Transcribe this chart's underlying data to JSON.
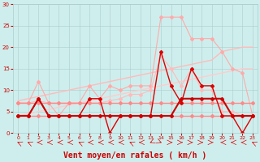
{
  "x": [
    0,
    1,
    2,
    3,
    4,
    5,
    6,
    7,
    8,
    9,
    10,
    11,
    12,
    13,
    14,
    15,
    16,
    17,
    18,
    19,
    20,
    21,
    22,
    23
  ],
  "series": [
    {
      "name": "slope_upper_light",
      "color": "#ffbbbb",
      "linewidth": 1.0,
      "marker": null,
      "y": [
        7.5,
        8.0,
        8.5,
        9.0,
        9.5,
        10.0,
        10.5,
        11.0,
        11.5,
        12.0,
        12.5,
        13.0,
        13.5,
        14.0,
        14.5,
        15.0,
        15.5,
        16.0,
        16.5,
        17.0,
        19.0,
        19.5,
        20.0,
        20.0
      ]
    },
    {
      "name": "slope_lower_light",
      "color": "#ffcccc",
      "linewidth": 1.0,
      "marker": null,
      "y": [
        4.0,
        4.5,
        5.0,
        5.5,
        6.0,
        6.5,
        7.0,
        7.5,
        8.0,
        8.5,
        9.0,
        9.5,
        10.0,
        10.5,
        11.0,
        11.5,
        12.0,
        12.5,
        13.0,
        13.5,
        14.0,
        14.5,
        15.0,
        15.0
      ]
    },
    {
      "name": "rafales_light",
      "color": "#ffaaaa",
      "linewidth": 0.8,
      "marker": "D",
      "markersize": 2.0,
      "y": [
        7,
        7,
        12,
        7,
        4,
        7,
        7,
        11,
        8,
        11,
        10,
        11,
        11,
        11,
        27,
        27,
        27,
        22,
        22,
        22,
        19,
        15,
        14,
        4
      ]
    },
    {
      "name": "moyen_light",
      "color": "#ffbbbb",
      "linewidth": 0.8,
      "marker": "D",
      "markersize": 2.0,
      "y": [
        7,
        7,
        7.5,
        7,
        7,
        7,
        7,
        7,
        7,
        7.5,
        8,
        9,
        9,
        10,
        18,
        15,
        11,
        15,
        10,
        10,
        5,
        5,
        4,
        4
      ]
    },
    {
      "name": "flat_upper_medium",
      "color": "#ff8888",
      "linewidth": 1.0,
      "marker": "D",
      "markersize": 2.0,
      "y": [
        7,
        7,
        7,
        7,
        7,
        7,
        7,
        7,
        7,
        7,
        7,
        7,
        7,
        7,
        7,
        7,
        7,
        7,
        7,
        7,
        7,
        7,
        7,
        7
      ]
    },
    {
      "name": "flat_lower_medium",
      "color": "#ff8888",
      "linewidth": 1.0,
      "marker": "D",
      "markersize": 2.0,
      "y": [
        4,
        4,
        4,
        4,
        4,
        4,
        4,
        4,
        4,
        4,
        4,
        4,
        4,
        4,
        4,
        4,
        4,
        4,
        4,
        4,
        4,
        4,
        4,
        4
      ]
    },
    {
      "name": "rafales_dark",
      "color": "#dd0000",
      "linewidth": 1.0,
      "marker": "D",
      "markersize": 2.0,
      "y": [
        4,
        4,
        8,
        4,
        4,
        4,
        4,
        8,
        8,
        0,
        4,
        4,
        4,
        4,
        19,
        11,
        7,
        15,
        11,
        11,
        4,
        4,
        0,
        4
      ]
    },
    {
      "name": "moyen_dark",
      "color": "#cc0000",
      "linewidth": 1.5,
      "marker": "D",
      "markersize": 2.0,
      "y": [
        4,
        4,
        8,
        4,
        4,
        4,
        4,
        4,
        4,
        4,
        4,
        4,
        4,
        4,
        4,
        4,
        8,
        8,
        8,
        8,
        8,
        4,
        4,
        4
      ]
    }
  ],
  "wind_arrows": {
    "positions": [
      0,
      1,
      2,
      3,
      4,
      5,
      6,
      7,
      8,
      9,
      10,
      11,
      12,
      13,
      14,
      15,
      16,
      17,
      18,
      19,
      20,
      21,
      22,
      23
    ],
    "directions": [
      225,
      225,
      270,
      270,
      270,
      270,
      225,
      270,
      270,
      270,
      270,
      225,
      270,
      315,
      45,
      90,
      90,
      90,
      90,
      90,
      270,
      270,
      270,
      225
    ],
    "color": "#dd0000"
  },
  "xlabel": "Vent moyen/en rafales ( km/h )",
  "xlim": [
    -0.5,
    23.5
  ],
  "ylim": [
    0,
    30
  ],
  "yticks": [
    0,
    5,
    10,
    15,
    20,
    25,
    30
  ],
  "xticks": [
    0,
    1,
    2,
    3,
    4,
    5,
    6,
    7,
    8,
    9,
    10,
    11,
    12,
    13,
    14,
    15,
    16,
    17,
    18,
    19,
    20,
    21,
    22,
    23
  ],
  "bg_color": "#ceeeed",
  "grid_color": "#aacccc",
  "tick_color": "#cc0000",
  "xlabel_color": "#cc0000"
}
